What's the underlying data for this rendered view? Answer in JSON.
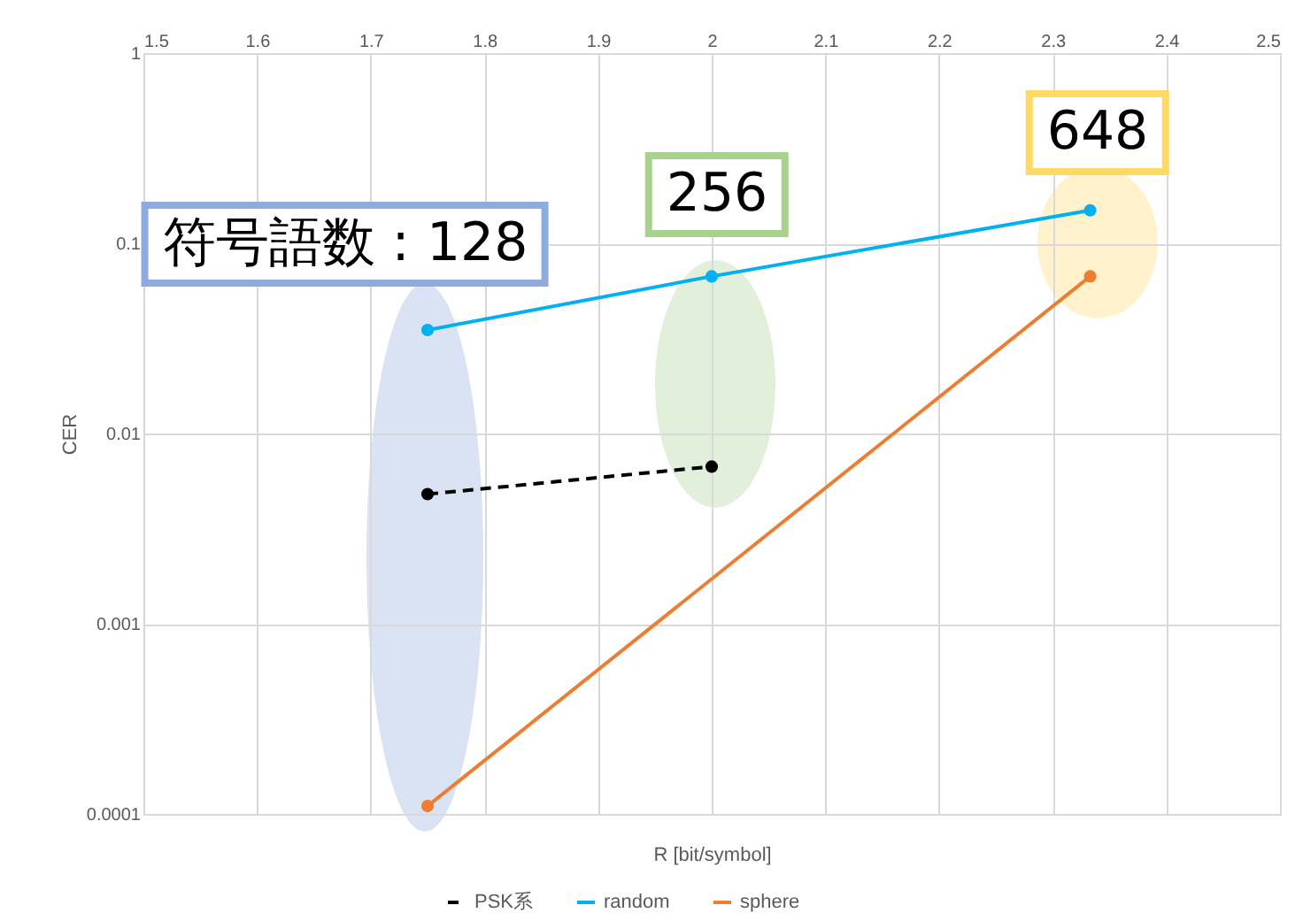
{
  "chart_data": {
    "type": "line",
    "xlabel": "R [bit/symbol]",
    "ylabel": "CER",
    "xlim": [
      1.5,
      2.5
    ],
    "xticks": [
      1.5,
      1.6,
      1.7,
      1.8,
      1.9,
      2,
      2.1,
      2.2,
      2.3,
      2.4,
      2.5
    ],
    "ylim": [
      0.0001,
      1
    ],
    "yticks": [
      0.0001,
      0.001,
      0.01,
      0.1,
      1
    ],
    "log": "y",
    "grid": true,
    "legend": "bottom",
    "marker": "circle",
    "series": [
      {
        "name": "PSK系",
        "color": "#000000",
        "line_style": "dashed",
        "x": [
          1.75,
          2
        ],
        "values": [
          0.0048,
          0.0067
        ]
      },
      {
        "name": "random",
        "color": "#00b0f0",
        "line_style": "solid",
        "x": [
          1.75,
          2,
          2.333
        ],
        "values": [
          0.035,
          0.067,
          0.149
        ]
      },
      {
        "name": "sphere",
        "color": "#ed7d31",
        "line_style": "solid",
        "x": [
          1.75,
          2.333
        ],
        "values": [
          0.00011,
          0.067
        ]
      }
    ],
    "annotations": [
      "符号語数 : 128",
      "256",
      "648"
    ]
  }
}
